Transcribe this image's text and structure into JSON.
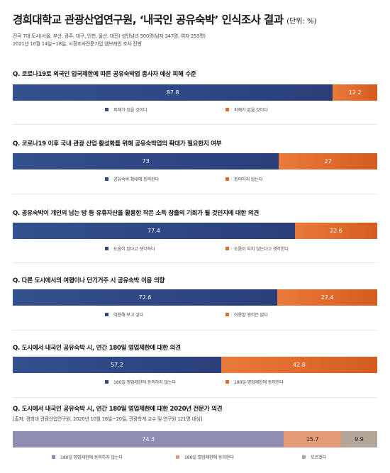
{
  "title": "경희대학교 관광산업연구원, ‘내국인 공유숙박’ 인식조사 결과",
  "unit": "(단위: %)",
  "meta_line1": "전국 7대 도시(서울, 부산, 광주, 대구, 인천, 울산, 대전) 성인남녀 500명(남자 247명, 여자 253명)",
  "meta_line2": "2021년 10월 14일~18일, 시장조사전문기업 엠브레인 조사 진행",
  "colors": {
    "navy": "#2f4a88",
    "orange": "#e36a2a",
    "purple": "#8e8cb1",
    "salmon": "#e39a78",
    "taupe": "#b3a598"
  },
  "chart_data": [
    {
      "type": "bar",
      "title": "Q. 코로나19로 외국인 입국제한에 따른 공유숙박업 종사자 예상 피해 수준",
      "series": [
        {
          "name": "피해가 있을 것이다",
          "value": 87.8,
          "label": "87.8"
        },
        {
          "name": "피해가 없을 것이다",
          "value": 12.2,
          "label": "12.2"
        }
      ]
    },
    {
      "type": "bar",
      "title": "Q. 코로나19 이후 국내 관광 산업 활성화를 위해 공유숙박업의 확대가 필요한지 여부",
      "series": [
        {
          "name": "공유숙박 확대에 동의한다",
          "value": 73,
          "label": "73"
        },
        {
          "name": "동의하지 않는다",
          "value": 27,
          "label": "27"
        }
      ]
    },
    {
      "type": "bar",
      "title": "Q. 공유숙박이 개인의 남는 방 등 유휴자산을 활용한 작은 소득 창출의 기회가 될 것인지에 대한 의견",
      "series": [
        {
          "name": "도움이 된다고 생각하다",
          "value": 77.4,
          "label": "77.4"
        },
        {
          "name": "도움이 되지 않는다고 생각한다",
          "value": 22.6,
          "label": "22.6"
        }
      ]
    },
    {
      "type": "bar",
      "title": "Q. 다른 도시에서의 여행이나 단기거주 시 공유숙박 이용 의향",
      "series": [
        {
          "name": "이용해 보고 싶다",
          "value": 72.6,
          "label": "72.6"
        },
        {
          "name": "이용할 생각은 없다",
          "value": 27.4,
          "label": "27.4"
        }
      ]
    },
    {
      "type": "bar",
      "title": "Q. 도시에서 내국인 공유숙박 시, 연간 180일 영업제한에 대한 의견",
      "series": [
        {
          "name": "180일 영업제한에 동의하지 않는다",
          "value": 57.2,
          "label": "57.2"
        },
        {
          "name": "180일 영업제한에 동의한다",
          "value": 42.8,
          "label": "42.8"
        }
      ]
    },
    {
      "type": "bar",
      "title": "Q. 도시에서 내국인 공유숙박 시, 연간 180일 영업제한에 대한 2020년 전문가 의견",
      "source": "[출처: 경희대 관광산업연구원, 2020년 10월 16일~20일, 관광학계 교수 및 연구원 121명 대상]",
      "series": [
        {
          "name": "180일 영업제한에 동의하지 않는다",
          "value": 74.3,
          "label": "74.3"
        },
        {
          "name": "180일 영업제한에 동의한다",
          "value": 15.7,
          "label": "15.7"
        },
        {
          "name": "모르겠다",
          "value": 9.9,
          "label": "9.9"
        }
      ]
    }
  ]
}
